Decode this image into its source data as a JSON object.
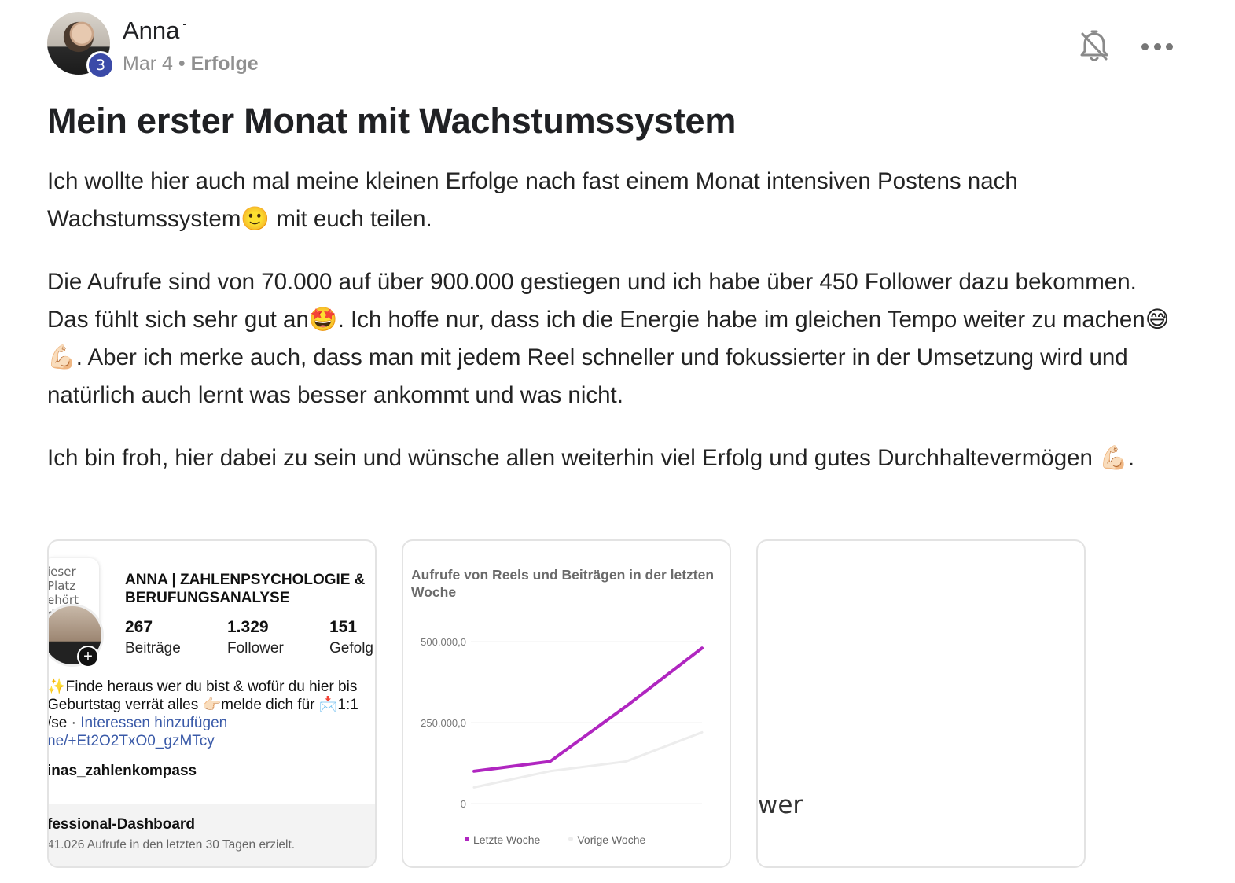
{
  "post": {
    "author": "Anna",
    "level": "3",
    "date": "Mar 4",
    "separator": "•",
    "category": "Erfolge",
    "title": "Mein erster Monat mit Wachstumssystem",
    "paragraphs": [
      "Ich wollte hier auch mal meine kleinen Erfolge nach fast einem Monat intensiven Postens nach Wachstumssystem🙂 mit euch teilen.",
      "Die Aufrufe sind von 70.000 auf über 900.000 gestiegen und ich habe über 450 Follower dazu bekommen. Das fühlt sich sehr gut an🤩. Ich hoffe nur, dass ich die Energie habe im gleichen Tempo weiter zu machen😅💪🏻. Aber ich merke auch, dass man mit jedem Reel schneller und fokussierter in der Umsetzung wird und natürlich auch lernt was besser ankommt und was nicht.",
      "Ich bin froh, hier dabei zu sein und wünsche allen weiterhin viel Erfolg und gutes Durchhaltevermögen 💪🏻."
    ]
  },
  "icons": {
    "bell": "bell-off-icon",
    "more": "more-horizontal-icon",
    "plus": "plus-icon"
  },
  "attachments": {
    "profile": {
      "note": "ieser Platz ehört dir ...",
      "plus": "+",
      "name": "ANNA | ZAHLENPSYCHOLOGIE & BERUFUNGSANALYSE",
      "stats": [
        {
          "value": "267",
          "label": "Beiträge"
        },
        {
          "value": "1.329",
          "label": "Follower"
        },
        {
          "value": "151",
          "label": "Gefolg"
        }
      ],
      "bio_line1": "✨Finde heraus wer du bist & wofür du hier bis",
      "bio_line2": "Geburtstag verrät alles 👉🏻melde dich für 📩1:1",
      "bio_line3_prefix": "/se · ",
      "bio_line3_link": "Interessen hinzufügen",
      "bio_line4": "ne/+Et2O2TxO0_gzMTcy",
      "handle": "inas_zahlenkompass",
      "dashboard_title": "fessional-Dashboard",
      "dashboard_sub": "41.026 Aufrufe in den letzten 30 Tagen erzielt."
    },
    "chart_card": {
      "title": "Aufrufe von Reels und Beiträgen in der letzten Woche"
    },
    "third": {
      "text": "wer"
    }
  },
  "chart_data": {
    "type": "line",
    "title": "Aufrufe von Reels und Beiträgen in der letzten Woche",
    "x": [
      1,
      2,
      3,
      4
    ],
    "ylim": [
      0,
      500000
    ],
    "yticks": [
      "500.000,0",
      "250.000,0",
      "0"
    ],
    "series": [
      {
        "name": "Letzte Woche",
        "color": "#b026c0",
        "values": [
          100000,
          130000,
          300000,
          480000
        ]
      },
      {
        "name": "Vorige Woche",
        "color": "#ededed",
        "values": [
          50000,
          100000,
          130000,
          220000
        ]
      }
    ],
    "legend_position": "bottom",
    "grid": true
  }
}
